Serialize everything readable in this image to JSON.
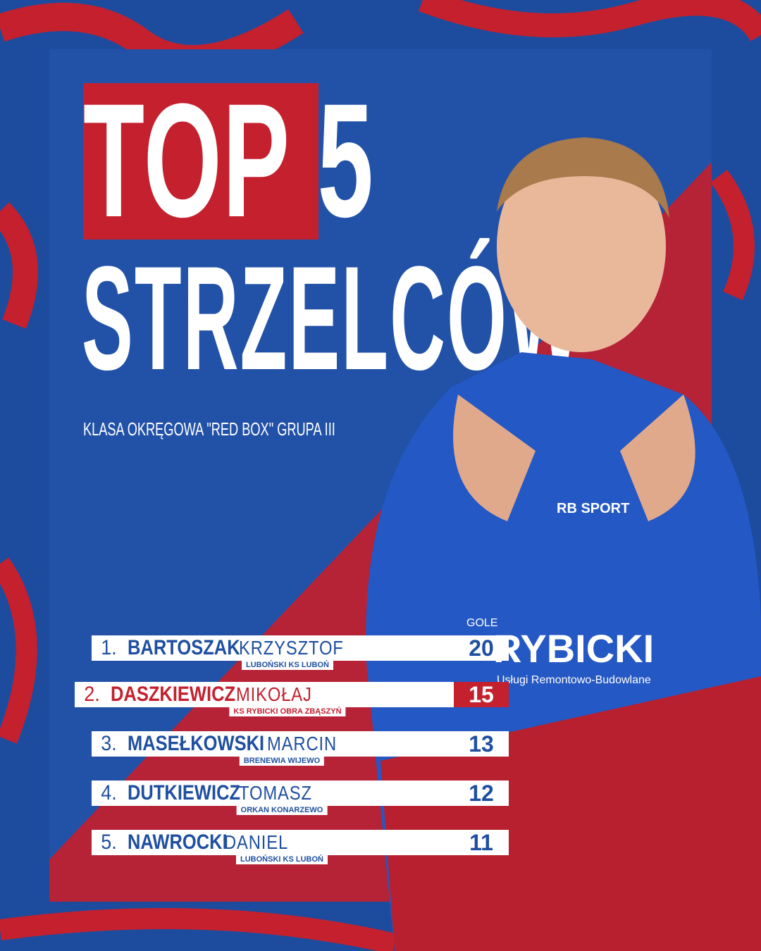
{
  "title_line1": "TOP 5",
  "title_line2": "STRZELCÓW",
  "subtitle": "KLASA OKRĘGOWA \"RED BOX\" GRUPA III",
  "goals_header": "GOLE",
  "jersey": {
    "brand": "RB SPORT",
    "sponsor": "RYBICKI",
    "sponsor_sub": "Usługi Remontowo-Budowlane"
  },
  "colors": {
    "blue": "#2252a8",
    "red": "#c4202e",
    "white": "#ffffff"
  },
  "scorers": [
    {
      "rank": "1.",
      "last": "BARTOSZAK",
      "first": "KRZYSZTOF",
      "club": "LUBOŃSKI KS LUBOŃ",
      "goals": "20"
    },
    {
      "rank": "2.",
      "last": "DASZKIEWICZ",
      "first": "MIKOŁAJ",
      "club": "KS RYBICKI OBRA ZBĄSZYŃ",
      "goals": "15",
      "highlighted": true
    },
    {
      "rank": "3.",
      "last": "MASEŁKOWSKI",
      "first": "MARCIN",
      "club": "BRENEWIA WIJEWO",
      "goals": "13"
    },
    {
      "rank": "4.",
      "last": "DUTKIEWICZ",
      "first": "TOMASZ",
      "club": "ORKAN KONARZEWO",
      "goals": "12"
    },
    {
      "rank": "5.",
      "last": "NAWROCKI",
      "first": "DANIEL",
      "club": "LUBOŃSKI KS LUBOŃ",
      "goals": "11"
    }
  ]
}
